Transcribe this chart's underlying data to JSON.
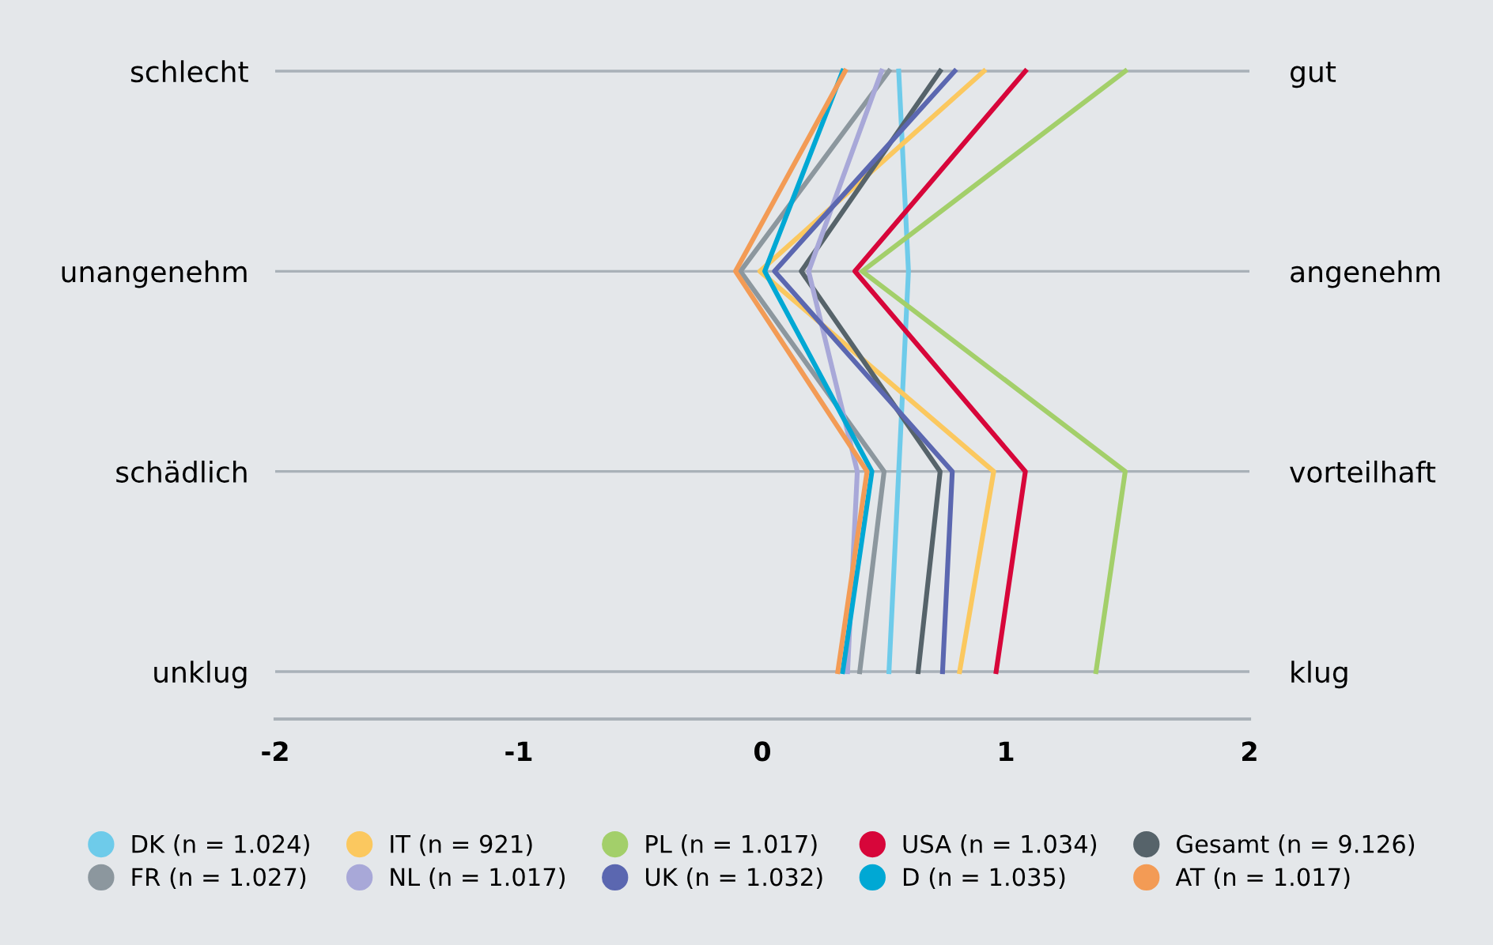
{
  "chart_data": {
    "type": "line",
    "orientation": "horizontal",
    "categories": [
      "schlecht",
      "unangenehm",
      "schädlich",
      "unklug"
    ],
    "y2_categories": [
      "gut",
      "angenehm",
      "vorteilhaft",
      "klug"
    ],
    "xlim": [
      -2,
      2
    ],
    "xticks": [
      -2,
      -1,
      0,
      1,
      2
    ],
    "grid": "y",
    "legend": "bottom",
    "marker": "none",
    "line_style": "solid",
    "series": [
      {
        "name": "DK (n = 1.024)",
        "color": "#6ecbea",
        "values": [
          0.56,
          0.6,
          0.56,
          0.52
        ]
      },
      {
        "name": "IT (n = 921)",
        "color": "#fbc85f",
        "values": [
          0.91,
          -0.01,
          0.95,
          0.81
        ]
      },
      {
        "name": "PL (n = 1.017)",
        "color": "#a3cf6a",
        "values": [
          1.49,
          0.41,
          1.49,
          1.37
        ]
      },
      {
        "name": "USA (n = 1.034)",
        "color": "#d7063a",
        "values": [
          1.08,
          0.38,
          1.08,
          0.96
        ]
      },
      {
        "name": "Gesamt (n = 9.126)",
        "color": "#56636a",
        "values": [
          0.73,
          0.16,
          0.73,
          0.64
        ]
      },
      {
        "name": "FR (n = 1.027)",
        "color": "#8c979e",
        "values": [
          0.52,
          -0.09,
          0.5,
          0.4
        ]
      },
      {
        "name": "NL (n = 1.017)",
        "color": "#a8a8d8",
        "values": [
          0.49,
          0.19,
          0.39,
          0.35
        ]
      },
      {
        "name": "UK (n = 1.032)",
        "color": "#5b67b0",
        "values": [
          0.79,
          0.05,
          0.78,
          0.74
        ]
      },
      {
        "name": "D (n = 1.035)",
        "color": "#00a8d4",
        "values": [
          0.33,
          0.01,
          0.45,
          0.33
        ]
      },
      {
        "name": "AT (n = 1.017)",
        "color": "#f39b55",
        "values": [
          0.34,
          -0.11,
          0.43,
          0.31
        ]
      }
    ]
  }
}
